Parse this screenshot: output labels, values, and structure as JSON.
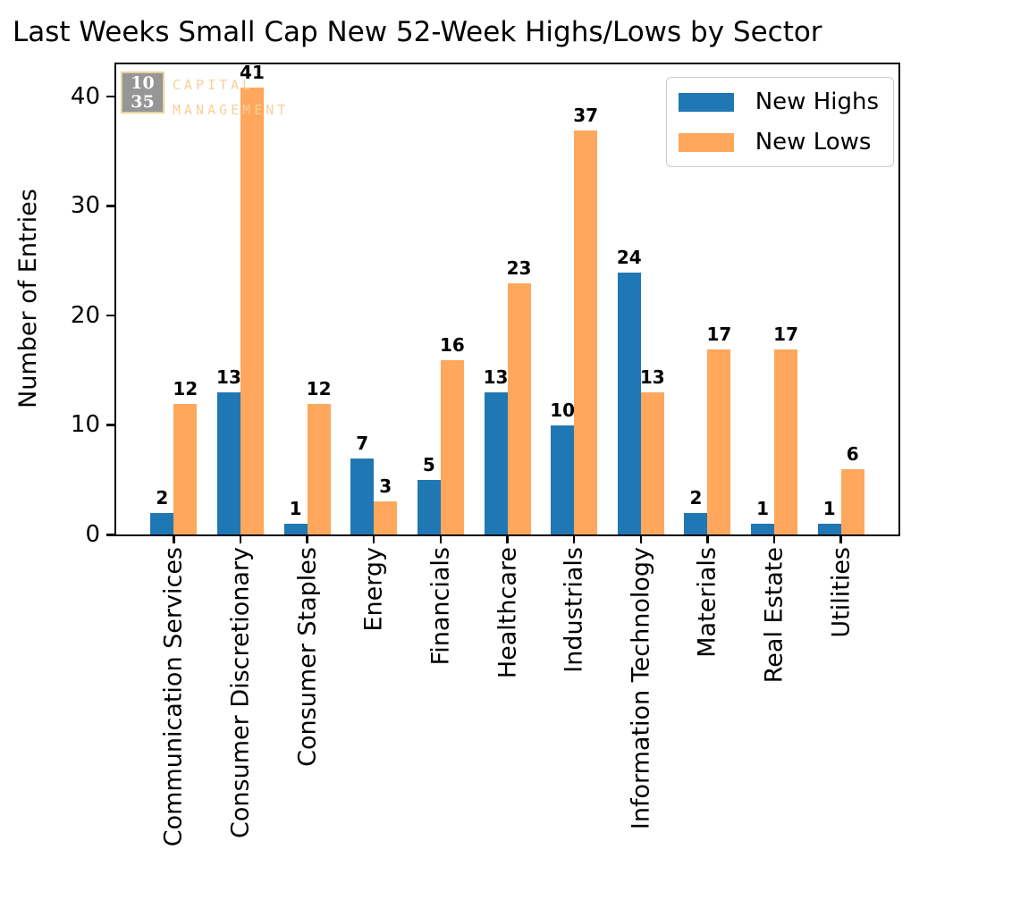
{
  "watermark": {
    "box_line1": "10",
    "box_line2": "35",
    "name_line1": "CAPITAL",
    "name_line2": "MANAGEMENT"
  },
  "chart_data": {
    "type": "bar",
    "title": "Last Weeks Small Cap New 52-Week Highs/Lows by Sector",
    "xlabel": "",
    "ylabel": "Number of Entries",
    "categories": [
      "Communication Services",
      "Consumer Discretionary",
      "Consumer Staples",
      "Energy",
      "Financials",
      "Healthcare",
      "Industrials",
      "Information Technology",
      "Materials",
      "Real Estate",
      "Utilities"
    ],
    "series": [
      {
        "name": "New Highs",
        "color": "#1f77b4",
        "values": [
          2,
          13,
          1,
          7,
          5,
          13,
          10,
          24,
          2,
          1,
          1
        ]
      },
      {
        "name": "New Lows",
        "color": "#ffa75c",
        "values": [
          12,
          41,
          12,
          3,
          16,
          23,
          37,
          13,
          17,
          17,
          6
        ]
      }
    ],
    "yticks": [
      0,
      10,
      20,
      30,
      40
    ],
    "ylim": [
      0,
      43.1
    ],
    "grid": false,
    "legend_position": "upper right",
    "bar_value_labels": true
  }
}
